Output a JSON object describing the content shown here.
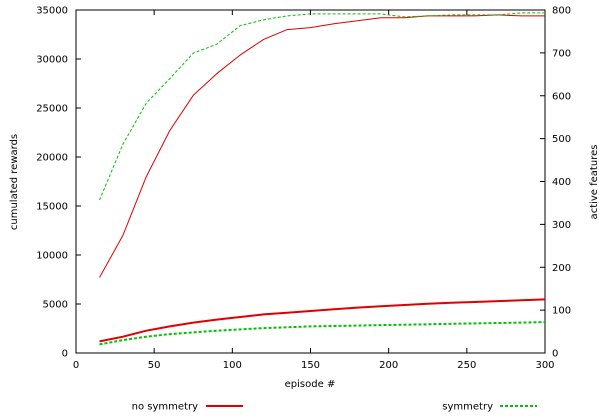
{
  "chart_data": {
    "type": "line",
    "title": "",
    "xlabel": "episode #",
    "ylabel": "cumulated rewards",
    "y2label": "active features",
    "xlim": [
      0,
      300
    ],
    "ylim": [
      0,
      35000
    ],
    "y2lim": [
      0,
      800
    ],
    "x_ticks": [
      0,
      50,
      100,
      150,
      200,
      250,
      300
    ],
    "y_ticks": [
      0,
      5000,
      10000,
      15000,
      20000,
      25000,
      30000,
      35000
    ],
    "y2_ticks": [
      0,
      100,
      200,
      300,
      400,
      500,
      600,
      700,
      800
    ],
    "grid": false,
    "legend_position": "bottom",
    "series": [
      {
        "name": "no symmetry",
        "color": "#e00000",
        "style": "solid",
        "axis": "y",
        "x": [
          15,
          30,
          45,
          60,
          75,
          90,
          105,
          120,
          135,
          150,
          165,
          180,
          195,
          210,
          225,
          240,
          255,
          270,
          285,
          300
        ],
        "values": [
          7700,
          12000,
          18000,
          22700,
          26300,
          28500,
          30400,
          32000,
          33000,
          33200,
          33600,
          33900,
          34200,
          34200,
          34400,
          34400,
          34400,
          34500,
          34400,
          34400
        ]
      },
      {
        "name": "symmetry",
        "color": "#00c000",
        "style": "dashed",
        "axis": "y",
        "x": [
          15,
          30,
          45,
          60,
          75,
          90,
          105,
          120,
          135,
          150,
          165,
          180,
          195,
          210,
          225,
          240,
          255,
          270,
          285,
          300
        ],
        "values": [
          15600,
          21300,
          25500,
          28000,
          30600,
          31500,
          33400,
          34000,
          34400,
          34600,
          34600,
          34600,
          34600,
          34300,
          34400,
          34500,
          34500,
          34500,
          34700,
          34700
        ]
      },
      {
        "name": "no symmetry",
        "color": "#e00000",
        "style": "solid",
        "axis": "y2",
        "x": [
          15,
          30,
          45,
          60,
          75,
          90,
          105,
          120,
          135,
          150,
          165,
          180,
          195,
          210,
          225,
          240,
          255,
          270,
          285,
          300
        ],
        "values": [
          27,
          38,
          52,
          62,
          71,
          78,
          84,
          90,
          94,
          98,
          102,
          106,
          109,
          112,
          115,
          117,
          119,
          121,
          123,
          125
        ]
      },
      {
        "name": "symmetry",
        "color": "#00c000",
        "style": "dashed",
        "axis": "y2",
        "x": [
          15,
          30,
          45,
          60,
          75,
          90,
          105,
          120,
          135,
          150,
          165,
          180,
          195,
          210,
          225,
          240,
          255,
          270,
          285,
          300
        ],
        "values": [
          20,
          30,
          38,
          44,
          48,
          52,
          55,
          58,
          60,
          62,
          63,
          64,
          65,
          66,
          67,
          68,
          69,
          70,
          71,
          72
        ]
      }
    ],
    "legend": [
      {
        "label": "no symmetry",
        "color": "#e00000",
        "style": "solid"
      },
      {
        "label": "symmetry",
        "color": "#00c000",
        "style": "dashed"
      }
    ]
  }
}
